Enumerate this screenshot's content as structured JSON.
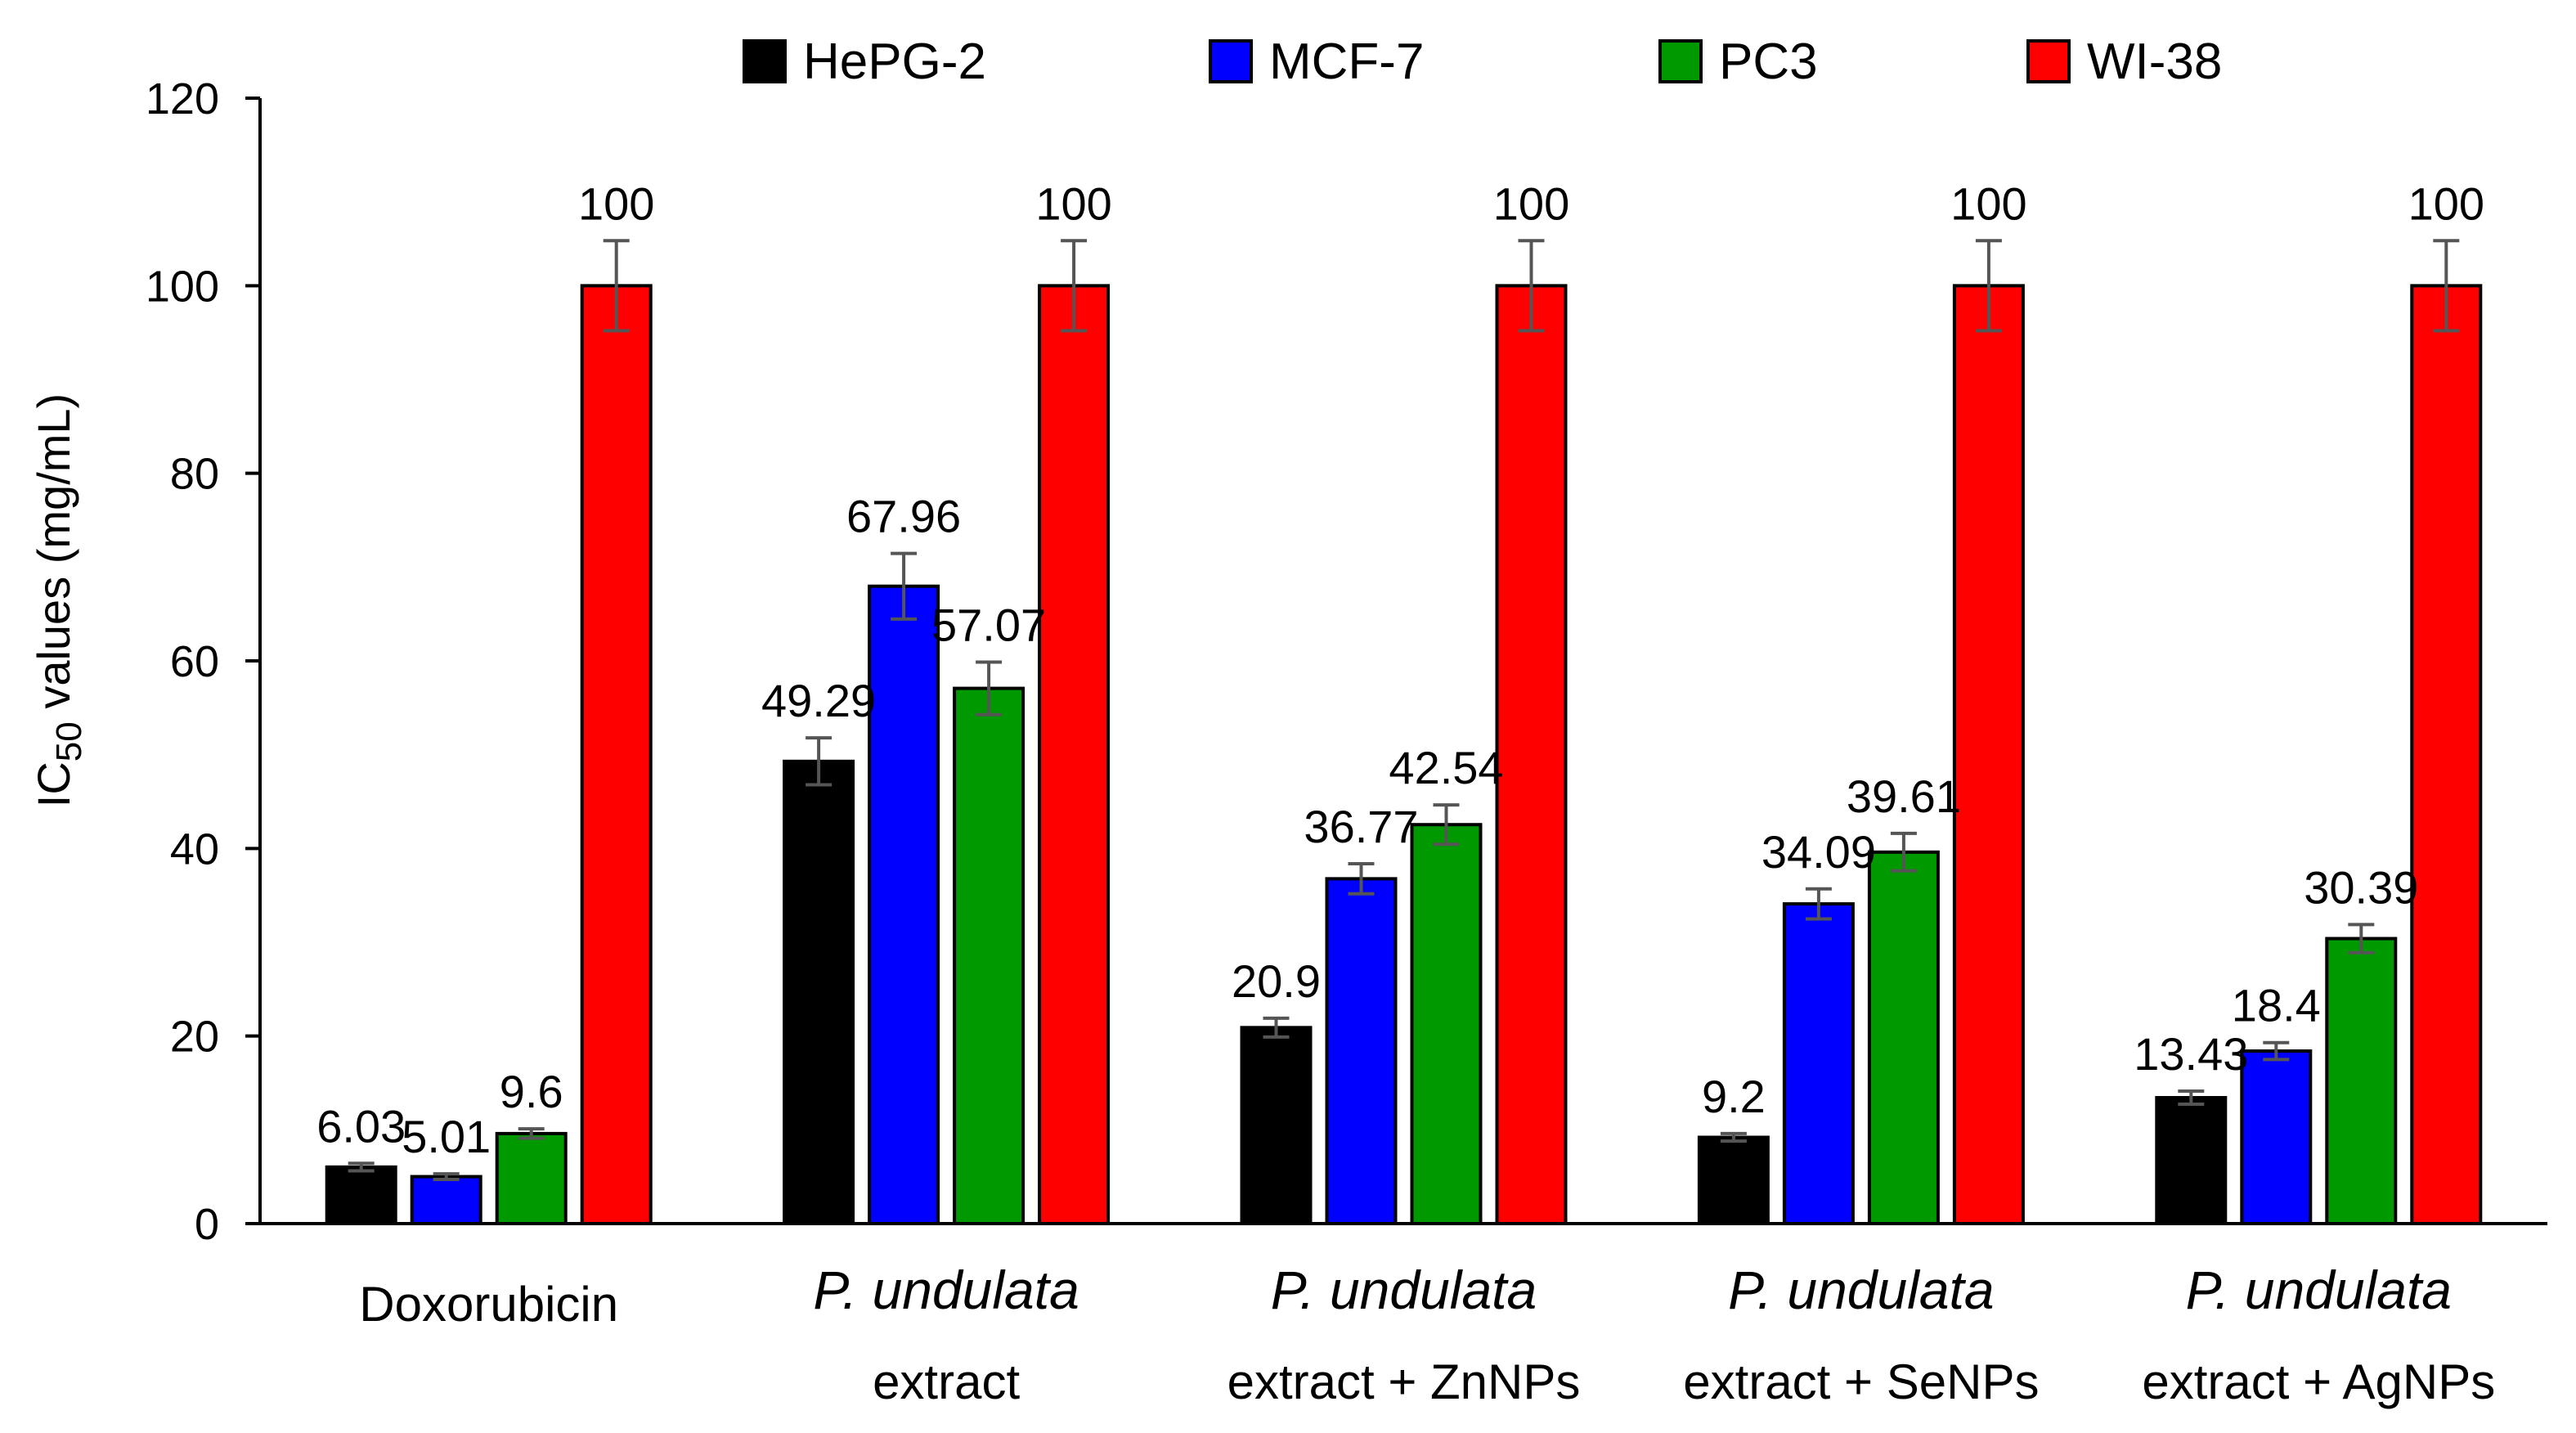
{
  "chart_data": {
    "type": "bar",
    "title": "",
    "ylabel_main": "IC",
    "ylabel_sub": "50",
    "ylabel_rest": " values (mg/mL)",
    "ylim": [
      0,
      120
    ],
    "yticks": [
      "0",
      "20",
      "40",
      "60",
      "80",
      "100",
      "120"
    ],
    "ytick_values": [
      0,
      20,
      40,
      60,
      80,
      100,
      120
    ],
    "grid": false,
    "legend_position": "top",
    "categories": [
      {
        "italic": "",
        "line2": "Doxorubicin"
      },
      {
        "italic": "P. undulata",
        "line2": "extract"
      },
      {
        "italic": "P. undulata",
        "line2": "extract + ZnNPs"
      },
      {
        "italic": "P. undulata",
        "line2": "extract + SeNPs"
      },
      {
        "italic": "P. undulata",
        "line2": "extract + AgNPs"
      }
    ],
    "series": [
      {
        "name": "HePG-2",
        "color": "#000000",
        "values": [
          6.03,
          49.29,
          20.9,
          9.2,
          13.43
        ],
        "errors": [
          0.4,
          2.5,
          1.0,
          0.4,
          0.7
        ],
        "labels": [
          "6.03",
          "49.29",
          "20.9",
          "9.2",
          "13.43"
        ]
      },
      {
        "name": "MCF-7",
        "color": "#0000ff",
        "values": [
          5.01,
          67.96,
          36.77,
          34.09,
          18.4
        ],
        "errors": [
          0.3,
          3.5,
          1.6,
          1.6,
          0.9
        ],
        "labels": [
          "5.01",
          "67.96",
          "36.77",
          "34.09",
          "18.4"
        ]
      },
      {
        "name": "PC3",
        "color": "#009900",
        "values": [
          9.6,
          57.07,
          42.54,
          39.61,
          30.39
        ],
        "errors": [
          0.5,
          2.8,
          2.1,
          2.0,
          1.5
        ],
        "labels": [
          "9.6",
          "57.07",
          "42.54",
          "39.61",
          "30.39"
        ]
      },
      {
        "name": "WI-38",
        "color": "#ff0000",
        "values": [
          100,
          100,
          100,
          100,
          100
        ],
        "errors": [
          4.8,
          4.8,
          4.8,
          4.8,
          4.8
        ],
        "labels": [
          "100",
          "100",
          "100",
          "100",
          "100"
        ]
      }
    ]
  }
}
